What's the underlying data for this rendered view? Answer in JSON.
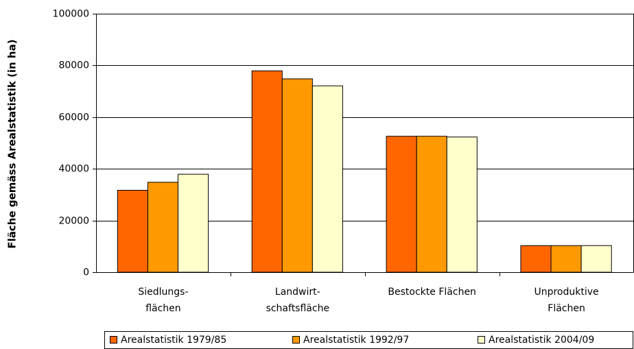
{
  "chart_data": {
    "type": "bar",
    "y_label": "Fläche gemäss Arealstatistik (in ha)",
    "categories": [
      [
        "Siedlungs-",
        "flächen"
      ],
      [
        "Landwirt-",
        "schaftsfläche"
      ],
      [
        "Bestockte Flächen"
      ],
      [
        "Unproduktive",
        "Flächen"
      ]
    ],
    "series": [
      {
        "name": "Arealstatistik 1979/85",
        "color": "#ff6600",
        "values": [
          31700,
          77900,
          52600,
          10300
        ]
      },
      {
        "name": "Arealstatistik 1992/97",
        "color": "#ff9900",
        "values": [
          34800,
          74800,
          52600,
          10300
        ]
      },
      {
        "name": "Arealstatistik 2004/09",
        "color": "#ffffcc",
        "values": [
          37900,
          72100,
          52300,
          10300
        ]
      }
    ],
    "ylim": [
      0,
      100000
    ],
    "yticks": [
      0,
      20000,
      40000,
      60000,
      80000,
      100000
    ],
    "grid": true
  }
}
